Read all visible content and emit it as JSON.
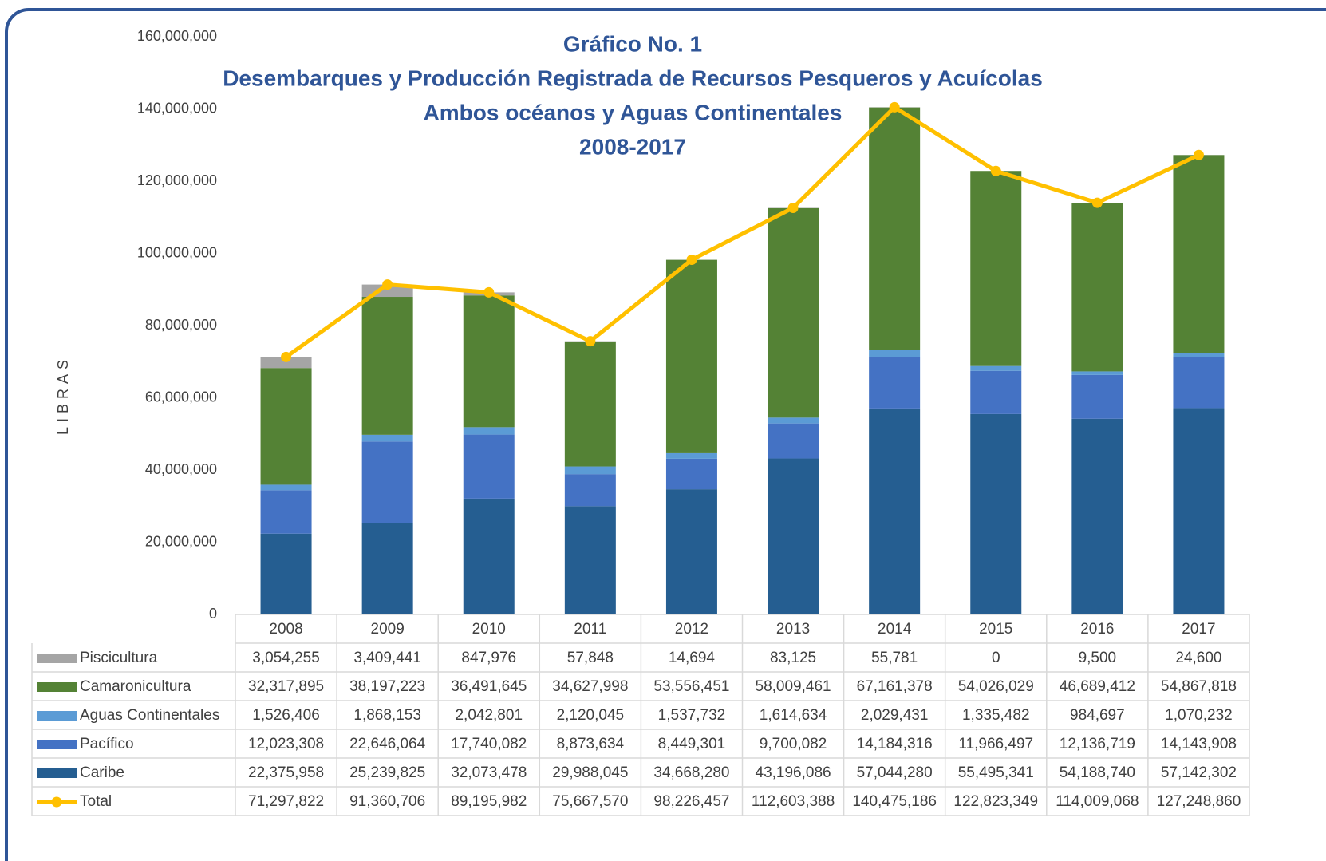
{
  "chart_data": {
    "type": "bar",
    "title": "Gráfico No. 1",
    "subtitle": [
      "Desembarques y Producción Registrada de Recursos Pesqueros y Acuícolas",
      "Ambos océanos y Aguas Continentales",
      "2008-2017"
    ],
    "y_label": "LIBRAS",
    "stacked": true,
    "categories": [
      "2008",
      "2009",
      "2010",
      "2011",
      "2012",
      "2013",
      "2014",
      "2015",
      "2016",
      "2017"
    ],
    "series": [
      {
        "name": "Piscicultura",
        "color": "#a5a5a5",
        "values": [
          3054255,
          3409441,
          847976,
          57848,
          14694,
          83125,
          55781,
          0,
          9500,
          24600
        ],
        "value_labels": [
          "3,054,255",
          "3,409,441",
          "847,976",
          "57,848",
          "14,694",
          "83,125",
          "55,781",
          "0",
          "9,500",
          "24,600"
        ]
      },
      {
        "name": "Camaronicultura",
        "color": "#548235",
        "values": [
          32317895,
          38197223,
          36491645,
          34627998,
          53556451,
          58009461,
          67161378,
          54026029,
          46689412,
          54867818
        ],
        "value_labels": [
          "32,317,895",
          "38,197,223",
          "36,491,645",
          "34,627,998",
          "53,556,451",
          "58,009,461",
          "67,161,378",
          "54,026,029",
          "46,689,412",
          "54,867,818"
        ]
      },
      {
        "name": "Aguas Continentales",
        "color": "#5b9bd5",
        "values": [
          1526406,
          1868153,
          2042801,
          2120045,
          1537732,
          1614634,
          2029431,
          1335482,
          984697,
          1070232
        ],
        "value_labels": [
          "1,526,406",
          "1,868,153",
          "2,042,801",
          "2,120,045",
          "1,537,732",
          "1,614,634",
          "2,029,431",
          "1,335,482",
          "984,697",
          "1,070,232"
        ]
      },
      {
        "name": "Pacífico",
        "color": "#4472c4",
        "values": [
          12023308,
          22646064,
          17740082,
          8873634,
          8449301,
          9700082,
          14184316,
          11966497,
          12136719,
          14143908
        ],
        "value_labels": [
          "12,023,308",
          "22,646,064",
          "17,740,082",
          "8,873,634",
          "8,449,301",
          "9,700,082",
          "14,184,316",
          "11,966,497",
          "12,136,719",
          "14,143,908"
        ]
      },
      {
        "name": "Caribe",
        "color": "#255e91",
        "values": [
          22375958,
          25239825,
          32073478,
          29988045,
          34668280,
          43196086,
          57044280,
          55495341,
          54188740,
          57142302
        ],
        "value_labels": [
          "22,375,958",
          "25,239,825",
          "32,073,478",
          "29,988,045",
          "34,668,280",
          "43,196,086",
          "57,044,280",
          "55,495,341",
          "54,188,740",
          "57,142,302"
        ]
      },
      {
        "name": "Total",
        "type": "line",
        "color": "#ffc000",
        "values": [
          71297822,
          91360706,
          89195982,
          75667570,
          98226457,
          112603388,
          140475186,
          122823349,
          114009068,
          127248860
        ],
        "value_labels": [
          "71,297,822",
          "91,360,706",
          "89,195,982",
          "75,667,570",
          "98,226,457",
          "112,603,388",
          "140,475,186",
          "122,823,349",
          "114,009,068",
          "127,248,860"
        ]
      }
    ],
    "ylim": [
      0,
      160000000
    ],
    "yticks": [
      0,
      {
        "value": 20000000,
        "label": "20,000,000"
      },
      {
        "value": 40000000,
        "label": "40,000,000"
      },
      {
        "value": 60000000,
        "label": "60,000,000"
      },
      {
        "value": 80000000,
        "label": "80,000,000"
      },
      {
        "value": 100000000,
        "label": "100,000,000"
      },
      {
        "value": 120000000,
        "label": "120,000,000"
      },
      {
        "value": 140000000,
        "label": "140,000,000"
      },
      {
        "value": 160000000,
        "label": "160,000,000"
      }
    ]
  }
}
